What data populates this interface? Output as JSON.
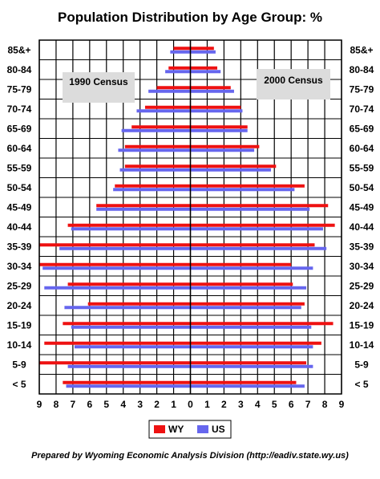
{
  "chart_data": {
    "type": "bar",
    "orientation": "horizontal",
    "title": "Population Distribution by Age Group: %",
    "categories": [
      "85&+",
      "80-84",
      "75-79",
      "70-74",
      "65-69",
      "60-64",
      "55-59",
      "50-54",
      "45-49",
      "40-44",
      "35-39",
      "30-34",
      "25-29",
      "20-24",
      "15-19",
      "10-14",
      "5-9",
      "< 5"
    ],
    "x_ticks": [
      "9",
      "8",
      "7",
      "6",
      "5",
      "4",
      "3",
      "2",
      "1",
      "0",
      "1",
      "2",
      "3",
      "4",
      "5",
      "6",
      "7",
      "8",
      "9"
    ],
    "xlim": [
      0,
      9
    ],
    "panels": [
      {
        "label": "1990 Census",
        "side": "left",
        "series": [
          {
            "name": "WY",
            "color": "#ee1111",
            "values": [
              1.0,
              1.3,
              2.0,
              2.7,
              3.5,
              3.9,
              3.9,
              4.5,
              5.6,
              7.3,
              9.0,
              9.0,
              7.3,
              6.1,
              7.6,
              8.7,
              9.0,
              7.6
            ]
          },
          {
            "name": "US",
            "color": "#6666ee",
            "values": [
              1.2,
              1.5,
              2.5,
              3.2,
              4.1,
              4.3,
              4.2,
              4.6,
              5.6,
              7.1,
              7.8,
              8.8,
              8.7,
              7.5,
              7.1,
              6.9,
              7.3,
              7.4
            ]
          }
        ]
      },
      {
        "label": "2000 Census",
        "side": "right",
        "series": [
          {
            "name": "WY",
            "color": "#ee1111",
            "values": [
              1.4,
              1.6,
              2.4,
              3.0,
              3.4,
              4.1,
              5.1,
              6.8,
              8.2,
              8.6,
              7.4,
              6.0,
              6.1,
              6.8,
              8.5,
              7.8,
              6.9,
              6.3
            ]
          },
          {
            "name": "US",
            "color": "#6666ee",
            "values": [
              1.5,
              1.8,
              2.6,
              3.1,
              3.4,
              3.8,
              4.8,
              6.2,
              7.1,
              7.9,
              8.1,
              7.3,
              6.9,
              6.6,
              7.2,
              7.3,
              7.3,
              6.8
            ]
          }
        ]
      }
    ],
    "legend": {
      "placement": "bottom",
      "entries": [
        "WY",
        "US"
      ]
    },
    "grid": true
  },
  "footer": "Prepared by Wyoming Economic Analysis Division (http://eadiv.state.wy.us)"
}
